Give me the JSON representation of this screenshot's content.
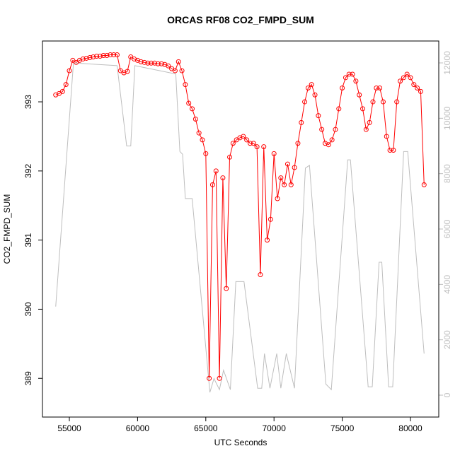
{
  "chart_data": {
    "type": "line",
    "title": "ORCAS RF08 CO2_FMPD_SUM",
    "x_label": "UTC Seconds",
    "y_label": "CO2_FMPD_SUM",
    "xlim": [
      53029,
      82075
    ],
    "ylim": [
      388.44,
      393.88
    ],
    "y2lim": [
      -791,
      12791
    ],
    "xticks": [
      55000,
      60000,
      65000,
      70000,
      75000,
      80000
    ],
    "yticks": [
      389,
      390,
      391,
      392,
      393
    ],
    "y2ticks": [
      0,
      2000,
      4000,
      6000,
      8000,
      10000,
      12000
    ],
    "series": [
      {
        "color": "#ff0000",
        "marker": "circle",
        "x": [
          54000,
          54250,
          54500,
          54750,
          55000,
          55250,
          55500,
          55750,
          56000,
          56250,
          56500,
          56750,
          57000,
          57250,
          57500,
          57750,
          58000,
          58250,
          58500,
          58750,
          59000,
          59250,
          59500,
          59750,
          60000,
          60250,
          60500,
          60750,
          61000,
          61250,
          61500,
          61750,
          62000,
          62250,
          62500,
          62750,
          63000,
          63250,
          63500,
          63750,
          64000,
          64250,
          64500,
          64750,
          65000,
          65250,
          65500,
          65750,
          66000,
          66250,
          66500,
          66750,
          67000,
          67250,
          67500,
          67750,
          68000,
          68250,
          68500,
          68750,
          69000,
          69250,
          69500,
          69750,
          70000,
          70250,
          70500,
          70750,
          71000,
          71250,
          71500,
          71750,
          72000,
          72250,
          72500,
          72750,
          73000,
          73250,
          73500,
          73750,
          74000,
          74250,
          74500,
          74750,
          75000,
          75250,
          75500,
          75750,
          76000,
          76250,
          76500,
          76750,
          77000,
          77250,
          77500,
          77750,
          78000,
          78250,
          78500,
          78750,
          79000,
          79250,
          79500,
          79750,
          80000,
          80250,
          80500,
          80750,
          81000
        ],
        "values": [
          393.1,
          393.12,
          393.15,
          393.25,
          393.45,
          393.6,
          393.57,
          393.6,
          393.62,
          393.63,
          393.64,
          393.65,
          393.66,
          393.66,
          393.67,
          393.67,
          393.68,
          393.68,
          393.68,
          393.45,
          393.42,
          393.44,
          393.65,
          393.62,
          393.6,
          393.58,
          393.57,
          393.56,
          393.56,
          393.56,
          393.55,
          393.55,
          393.54,
          393.52,
          393.48,
          393.45,
          393.58,
          393.45,
          393.25,
          392.98,
          392.9,
          392.75,
          392.55,
          392.45,
          392.25,
          389.0,
          391.8,
          392.0,
          389.0,
          391.9,
          390.3,
          392.2,
          392.4,
          392.45,
          392.48,
          392.5,
          392.45,
          392.4,
          392.4,
          392.35,
          390.5,
          392.35,
          391.0,
          391.3,
          392.25,
          391.6,
          391.9,
          391.8,
          392.1,
          391.8,
          392.05,
          392.4,
          392.7,
          393.0,
          393.2,
          393.25,
          393.1,
          392.8,
          392.6,
          392.4,
          392.38,
          392.45,
          392.6,
          392.9,
          393.2,
          393.35,
          393.4,
          393.4,
          393.3,
          393.1,
          392.9,
          392.6,
          392.7,
          393.0,
          393.2,
          393.2,
          393.0,
          392.5,
          392.3,
          392.3,
          393.0,
          393.3,
          393.35,
          393.4,
          393.35,
          393.25,
          393.2,
          393.15,
          391.8
        ]
      },
      {
        "color": "#bebebe",
        "axis": "y2",
        "x": [
          54000,
          55300,
          58500,
          59200,
          59500,
          59800,
          62800,
          63100,
          63300,
          63500,
          64000,
          65300,
          65600,
          66000,
          66300,
          66800,
          67200,
          67800,
          68800,
          69100,
          69300,
          69700,
          70200,
          70500,
          70900,
          71500,
          72300,
          72600,
          73800,
          74200,
          75400,
          75600,
          76900,
          77200,
          77700,
          77900,
          78400,
          78700,
          79500,
          79800,
          81000
        ],
        "values": [
          3200,
          12000,
          11900,
          9000,
          9000,
          11900,
          11600,
          8800,
          8700,
          7100,
          7100,
          100,
          600,
          200,
          900,
          200,
          4100,
          4100,
          250,
          250,
          1500,
          250,
          1500,
          250,
          1500,
          250,
          8200,
          8300,
          400,
          200,
          8500,
          8500,
          300,
          300,
          4800,
          4800,
          300,
          300,
          8800,
          8800,
          1500
        ]
      }
    ]
  }
}
